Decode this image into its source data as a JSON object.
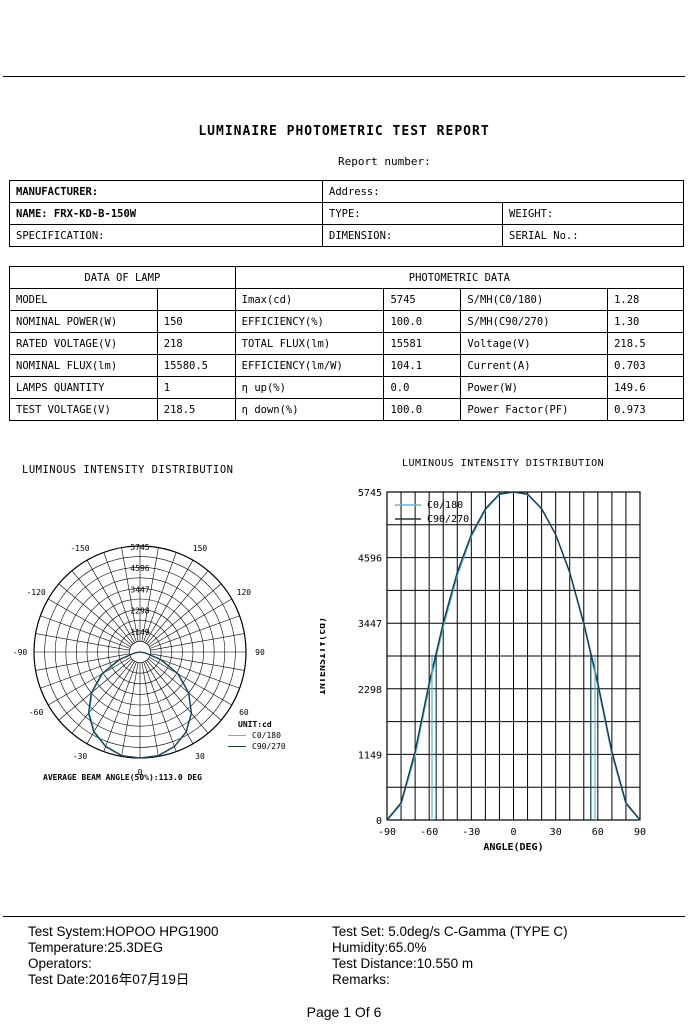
{
  "report": {
    "title": "LUMINAIRE PHOTOMETRIC TEST REPORT",
    "report_number_label": "Report number:"
  },
  "header_table": {
    "manufacturer": "MANUFACTURER:",
    "address": "Address:",
    "name": "NAME: FRX-KD-B-150W",
    "type": "TYPE:",
    "weight": "WEIGHT:",
    "specification": "SPECIFICATION:",
    "dimension": "DIMENSION:",
    "serial": "SERIAL No.:"
  },
  "data_table": {
    "lamp_header": "DATA OF LAMP",
    "photometric_header": "PHOTOMETRIC DATA",
    "rows": [
      [
        "MODEL",
        "",
        "Imax(cd)",
        "5745",
        "S/MH(C0/180)",
        "1.28"
      ],
      [
        "NOMINAL POWER(W)",
        "150",
        "EFFICIENCY(%)",
        "100.0",
        "S/MH(C90/270)",
        "1.30"
      ],
      [
        "RATED VOLTAGE(V)",
        "218",
        "TOTAL FLUX(lm)",
        "15581",
        "Voltage(V)",
        "218.5"
      ],
      [
        "NOMINAL FLUX(lm)",
        "15580.5",
        "EFFICIENCY(lm/W)",
        "104.1",
        "Current(A)",
        "0.703"
      ],
      [
        "LAMPS QUANTITY",
        "1",
        "η up(%)",
        "0.0",
        "Power(W)",
        "149.6"
      ],
      [
        "TEST VOLTAGE(V)",
        "218.5",
        "η down(%)",
        "100.0",
        "Power Factor(PF)",
        "0.973"
      ]
    ]
  },
  "polar_chart": {
    "title": "LUMINOUS INTENSITY DISTRIBUTION",
    "angle_labels": [
      "-150",
      "150",
      "-120",
      "120",
      "-90",
      "90",
      "-60",
      "60",
      "-30",
      "30",
      "0"
    ],
    "ring_labels": [
      "5745",
      "4596",
      "3447",
      "2298",
      "1149"
    ],
    "unit": "UNIT:cd",
    "legend": [
      "C0/180",
      "C90/270"
    ],
    "beam_angle": "AVERAGE BEAM ANGLE(50%):113.0 DEG"
  },
  "chart_data": {
    "type": "line",
    "title": "LUMINOUS INTENSITY DISTRIBUTION",
    "xlabel": "ANGLE(DEG)",
    "ylabel": "INTENSITY(cd)",
    "xlim": [
      -90,
      90
    ],
    "ylim": [
      0,
      5745
    ],
    "xticks": [
      "-90",
      "-60",
      "-30",
      "0",
      "30",
      "60",
      "90"
    ],
    "yticks": [
      "0",
      "1149",
      "2298",
      "3447",
      "4596",
      "5745"
    ],
    "x": [
      -90,
      -80,
      -70,
      -60,
      -50,
      -40,
      -30,
      -20,
      -10,
      0,
      10,
      20,
      30,
      40,
      50,
      60,
      70,
      80,
      90
    ],
    "series": [
      {
        "name": "C0/180",
        "color": "#5ab8d8",
        "values": [
          0,
          270,
          1130,
          2330,
          3380,
          4280,
          4960,
          5430,
          5700,
          5745,
          5700,
          5460,
          5000,
          4330,
          3420,
          2350,
          1150,
          280,
          0
        ]
      },
      {
        "name": "C90/270",
        "color": "#1a3a4a",
        "values": [
          0,
          300,
          1200,
          2400,
          3450,
          4340,
          5000,
          5450,
          5710,
          5745,
          5710,
          5450,
          5000,
          4340,
          3450,
          2400,
          1200,
          300,
          0
        ]
      }
    ],
    "legend_position": "top-left",
    "grid": true
  },
  "footer": {
    "test_system": "Test System:HOPOO HPG1900",
    "temperature": "Temperature:25.3DEG",
    "operators": "Operators:",
    "test_date": "Test Date:2016年07月19日",
    "test_set": "Test Set: 5.0deg/s  C-Gamma (TYPE C)",
    "humidity": "Humidity:65.0%",
    "test_distance": "Test Distance:10.550 m",
    "remarks": "Remarks:",
    "page": "Page 1 Of 6"
  }
}
